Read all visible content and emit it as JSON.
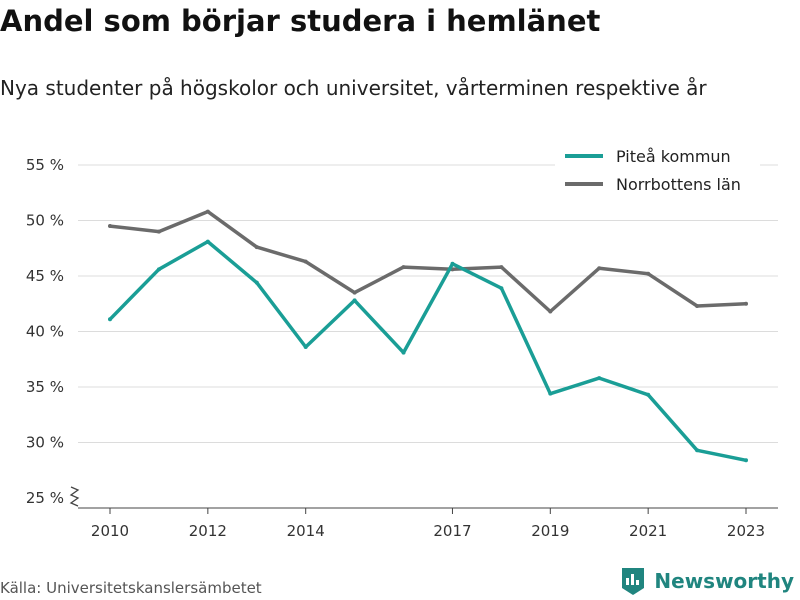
{
  "header": {
    "title": "Andel som börjar studera i hemlänet",
    "subtitle": "Nya studenter på högskolor och universitet, vårterminen respektive år"
  },
  "footer": {
    "source": "Källa: Universitetskanslersämbetet",
    "brand": "Newsworthy",
    "brand_icon": "bar-chart-logo-icon",
    "brand_color": "#20857f"
  },
  "chart_data": {
    "type": "line",
    "x": [
      2010,
      2011,
      2012,
      2013,
      2014,
      2015,
      2016,
      2017,
      2018,
      2019,
      2020,
      2021,
      2022,
      2023
    ],
    "x_tick_labels": [
      "2010",
      "2012",
      "2014",
      "2017",
      "2019",
      "2021",
      "2023"
    ],
    "y_tick_labels": [
      "25 %",
      "30 %",
      "35 %",
      "40 %",
      "45 %",
      "50 %",
      "55 %"
    ],
    "ylim": [
      25,
      55
    ],
    "grid": true,
    "legend_position": "top-right",
    "series": [
      {
        "name": "Piteå kommun",
        "color": "#1a9e96",
        "values": [
          41.1,
          45.6,
          48.1,
          44.4,
          38.6,
          42.8,
          38.1,
          46.1,
          43.9,
          34.4,
          35.8,
          34.3,
          29.3,
          28.4
        ]
      },
      {
        "name": "Norrbottens län",
        "color": "#6b6b6b",
        "values": [
          49.5,
          49.0,
          50.8,
          47.6,
          46.3,
          43.5,
          45.8,
          45.6,
          45.8,
          41.8,
          45.7,
          45.2,
          42.3,
          42.5
        ]
      }
    ]
  }
}
